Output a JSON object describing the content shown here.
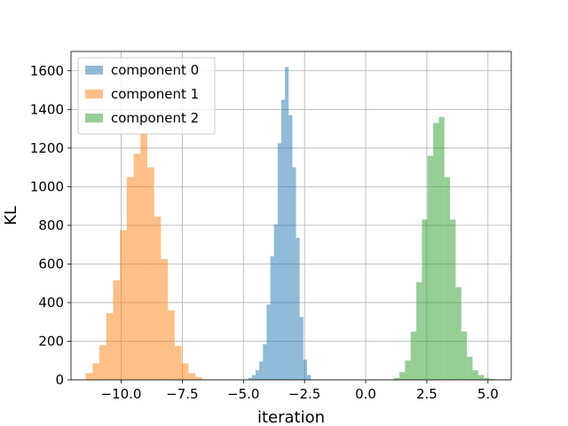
{
  "chart_data": {
    "type": "bar",
    "subtype": "histogram",
    "title": "",
    "xlabel": "iteration",
    "ylabel": "KL",
    "xlim": [
      -12.05,
      5.95
    ],
    "ylim": [
      0,
      1700
    ],
    "x_ticks": [
      -10.0,
      -7.5,
      -5.0,
      -2.5,
      0.0,
      2.5,
      5.0
    ],
    "x_tick_labels": [
      "−10.0",
      "−7.5",
      "−5.0",
      "−2.5",
      "0.0",
      "2.5",
      "5.0"
    ],
    "y_ticks": [
      0,
      200,
      400,
      600,
      800,
      1000,
      1200,
      1400,
      1600
    ],
    "y_tick_labels": [
      "0",
      "200",
      "400",
      "600",
      "800",
      "1000",
      "1200",
      "1400",
      "1600"
    ],
    "grid": true,
    "legend_position": "top-left",
    "bar_alpha": 0.5,
    "series": [
      {
        "name": "component 0",
        "color": "#1f77b4",
        "bin_edges": [
          -4.8,
          -4.65,
          -4.5,
          -4.35,
          -4.2,
          -4.05,
          -3.9,
          -3.75,
          -3.6,
          -3.45,
          -3.3,
          -3.15,
          -3.0,
          -2.85,
          -2.7,
          -2.55,
          -2.4,
          -2.25
        ],
        "counts": [
          10,
          25,
          50,
          95,
          185,
          390,
          640,
          805,
          1225,
          1450,
          1620,
          1370,
          1100,
          735,
          325,
          105,
          25
        ]
      },
      {
        "name": "component 1",
        "color": "#ff7f0e",
        "bin_edges": [
          -11.45,
          -11.17,
          -10.89,
          -10.61,
          -10.33,
          -10.05,
          -9.77,
          -9.49,
          -9.21,
          -8.93,
          -8.65,
          -8.37,
          -8.09,
          -7.81,
          -7.53,
          -7.25,
          -6.97,
          -6.69
        ],
        "counts": [
          35,
          85,
          180,
          345,
          515,
          775,
          1050,
          1170,
          1280,
          1100,
          845,
          625,
          360,
          175,
          85,
          35,
          15
        ]
      },
      {
        "name": "component 2",
        "color": "#2ca02c",
        "bin_edges": [
          1.15,
          1.38,
          1.61,
          1.84,
          2.07,
          2.3,
          2.53,
          2.76,
          2.99,
          3.22,
          3.45,
          3.68,
          3.91,
          4.14,
          4.37,
          4.6,
          4.83,
          5.06,
          5.29
        ],
        "counts": [
          10,
          40,
          100,
          250,
          505,
          830,
          1160,
          1330,
          1360,
          1050,
          830,
          480,
          250,
          120,
          50,
          25,
          10,
          5
        ]
      }
    ]
  }
}
